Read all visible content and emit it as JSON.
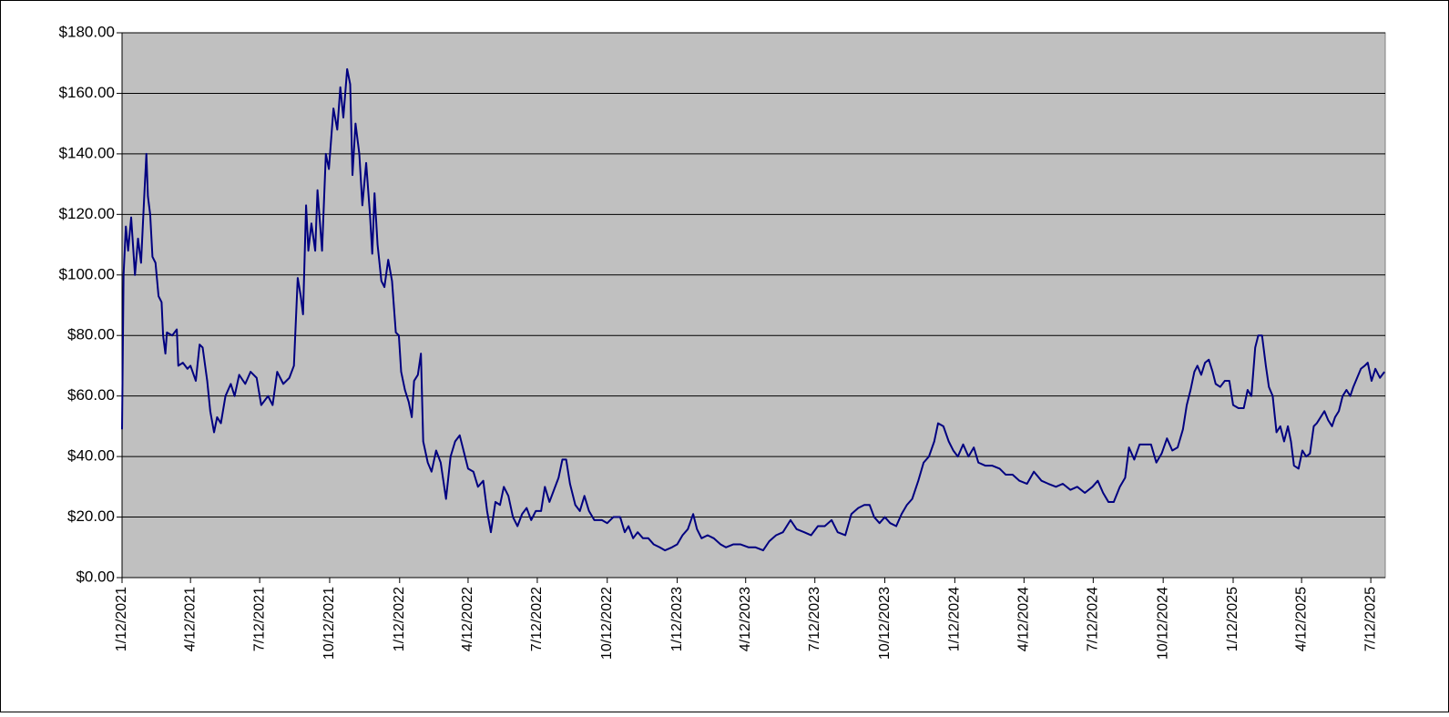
{
  "chart_data": {
    "type": "line",
    "color": "#000080",
    "grid": true,
    "xlim": [
      "1/12/2021",
      "7/31/2025"
    ],
    "xticks": [
      "1/12/2021",
      "4/12/2021",
      "7/12/2021",
      "10/12/2021",
      "1/12/2022",
      "4/12/2022",
      "7/12/2022",
      "10/12/2022",
      "1/12/2023",
      "4/12/2023",
      "7/12/2023",
      "10/12/2023",
      "1/12/2024",
      "4/12/2024",
      "7/12/2024",
      "10/12/2024",
      "1/12/2025",
      "4/12/2025",
      "7/12/2025"
    ],
    "ylim": [
      0,
      180
    ],
    "yticks": [
      {
        "value": 0,
        "label": "$0.00"
      },
      {
        "value": 20,
        "label": "$20.00"
      },
      {
        "value": 40,
        "label": "$40.00"
      },
      {
        "value": 60,
        "label": "$60.00"
      },
      {
        "value": 80,
        "label": "$80.00"
      },
      {
        "value": 100,
        "label": "$100.00"
      },
      {
        "value": 120,
        "label": "$120.00"
      },
      {
        "value": 140,
        "label": "$140.00"
      },
      {
        "value": 160,
        "label": "$160.00"
      },
      {
        "value": 180,
        "label": "$180.00"
      }
    ],
    "x": [
      "1/12/2021",
      "1/14/2021",
      "1/17/2021",
      "1/20/2021",
      "1/24/2021",
      "1/29/2021",
      "2/2/2021",
      "2/6/2021",
      "2/10/2021",
      "2/13/2021",
      "2/15/2021",
      "2/18/2021",
      "2/21/2021",
      "2/25/2021",
      "3/1/2021",
      "3/5/2021",
      "3/7/2021",
      "3/10/2021",
      "3/12/2021",
      "3/19/2021",
      "3/25/2021",
      "3/27/2021",
      "4/2/2021",
      "4/8/2021",
      "4/12/2021",
      "4/19/2021",
      "4/24/2021",
      "4/28/2021",
      "5/4/2021",
      "5/8/2021",
      "5/13/2021",
      "5/17/2021",
      "5/22/2021",
      "5/28/2021",
      "6/4/2021",
      "6/9/2021",
      "6/15/2021",
      "6/23/2021",
      "6/30/2021",
      "7/8/2021",
      "7/14/2021",
      "7/23/2021",
      "7/29/2021",
      "8/4/2021",
      "8/12/2021",
      "8/20/2021",
      "8/26/2021",
      "8/31/2021",
      "9/4/2021",
      "9/7/2021",
      "9/11/2021",
      "9/14/2021",
      "9/18/2021",
      "9/23/2021",
      "9/26/2021",
      "10/2/2021",
      "10/7/2021",
      "10/11/2021",
      "10/17/2021",
      "10/22/2021",
      "10/26/2021",
      "10/30/2021",
      "11/4/2021",
      "11/8/2021",
      "11/11/2021",
      "11/15/2021",
      "11/20/2021",
      "11/24/2021",
      "11/29/2021",
      "12/4/2021",
      "12/7/2021",
      "12/10/2021",
      "12/14/2021",
      "12/19/2021",
      "12/23/2021",
      "12/28/2021",
      "1/2/2022",
      "1/7/2022",
      "1/11/2022",
      "1/14/2022",
      "1/19/2022",
      "1/24/2022",
      "1/28/2022",
      "1/31/2022",
      "2/5/2022",
      "2/9/2022",
      "2/12/2022",
      "2/18/2022",
      "2/23/2022",
      "3/1/2022",
      "3/7/2022",
      "3/14/2022",
      "3/20/2022",
      "3/26/2022",
      "4/1/2022",
      "4/7/2022",
      "4/12/2022",
      "4/19/2022",
      "4/25/2022",
      "5/2/2022",
      "5/7/2022",
      "5/12/2022",
      "5/18/2022",
      "5/24/2022",
      "5/29/2022",
      "6/4/2022",
      "6/10/2022",
      "6/16/2022",
      "6/22/2022",
      "6/28/2022",
      "7/4/2022",
      "7/10/2022",
      "7/17/2022",
      "7/22/2022",
      "7/28/2022",
      "8/3/2022",
      "8/9/2022",
      "8/14/2022",
      "8/19/2022",
      "8/24/2022",
      "8/31/2022",
      "9/6/2022",
      "9/12/2022",
      "9/18/2022",
      "9/25/2022",
      "10/5/2022",
      "10/12/2022",
      "10/20/2022",
      "10/29/2022",
      "11/4/2022",
      "11/9/2022",
      "11/15/2022",
      "11/21/2022",
      "11/28/2022",
      "12/5/2022",
      "12/12/2022",
      "12/20/2022",
      "12/27/2022",
      "1/5/2023",
      "1/12/2023",
      "1/19/2023",
      "1/26/2023",
      "2/2/2023",
      "2/7/2023",
      "2/13/2023",
      "2/21/2023",
      "3/1/2023",
      "3/10/2023",
      "3/17/2023",
      "3/27/2023",
      "4/5/2023",
      "4/16/2023",
      "4/25/2023",
      "5/5/2023",
      "5/13/2023",
      "5/22/2023",
      "5/31/2023",
      "6/10/2023",
      "6/18/2023",
      "6/28/2023",
      "7/7/2023",
      "7/16/2023",
      "7/25/2023",
      "8/3/2023",
      "8/11/2023",
      "8/21/2023",
      "8/29/2023",
      "9/7/2023",
      "9/15/2023",
      "9/22/2023",
      "9/28/2023",
      "10/5/2023",
      "10/12/2023",
      "10/19/2023",
      "10/27/2023",
      "11/3/2023",
      "11/10/2023",
      "11/17/2023",
      "11/25/2023",
      "12/2/2023",
      "12/9/2023",
      "12/16/2023",
      "12/21/2023",
      "12/28/2023",
      "1/4/2024",
      "1/10/2024",
      "1/16/2024",
      "1/23/2024",
      "1/30/2024",
      "2/6/2024",
      "2/12/2024",
      "2/21/2024",
      "3/1/2024",
      "3/11/2024",
      "3/19/2024",
      "3/28/2024",
      "4/6/2024",
      "4/16/2024",
      "4/25/2024",
      "5/5/2024",
      "5/14/2024",
      "5/24/2024",
      "6/2/2024",
      "6/12/2024",
      "6/21/2024",
      "7/1/2024",
      "7/11/2024",
      "7/18/2024",
      "7/25/2024",
      "8/1/2024",
      "8/8/2024",
      "8/16/2024",
      "8/23/2024",
      "8/28/2024",
      "9/4/2024",
      "9/11/2024",
      "9/19/2024",
      "9/26/2024",
      "10/3/2024",
      "10/10/2024",
      "10/17/2024",
      "10/24/2024",
      "10/31/2024",
      "11/7/2024",
      "11/12/2024",
      "11/17/2024",
      "11/22/2024",
      "11/26/2024",
      "12/1/2024",
      "12/6/2024",
      "12/11/2024",
      "12/16/2024",
      "12/20/2024",
      "12/26/2024",
      "1/1/2025",
      "1/7/2025",
      "1/12/2025",
      "1/19/2025",
      "1/26/2025",
      "1/31/2025",
      "2/5/2025",
      "2/10/2025",
      "2/14/2025",
      "2/19/2025",
      "2/24/2025",
      "2/28/2025",
      "3/5/2025",
      "3/10/2025",
      "3/15/2025",
      "3/20/2025",
      "3/25/2025",
      "3/29/2025",
      "4/2/2025",
      "4/8/2025",
      "4/13/2025",
      "4/18/2025",
      "4/23/2025",
      "4/28/2025",
      "5/2/2025",
      "5/7/2025",
      "5/12/2025",
      "5/17/2025",
      "5/22/2025",
      "5/26/2025",
      "5/31/2025",
      "6/5/2025",
      "6/10/2025",
      "6/15/2025",
      "6/19/2025",
      "6/24/2025",
      "6/29/2025",
      "7/4/2025",
      "7/8/2025",
      "7/13/2025",
      "7/18/2025",
      "7/24/2025",
      "7/30/2025"
    ],
    "values": [
      49,
      100,
      116,
      108,
      119,
      100,
      112,
      104,
      125,
      140,
      126,
      120,
      106,
      104,
      93,
      91,
      80,
      74,
      81,
      80,
      82,
      70,
      71,
      69,
      70,
      65,
      77,
      76,
      65,
      55,
      48,
      53,
      51,
      60,
      64,
      60,
      67,
      64,
      68,
      66,
      57,
      60,
      57,
      68,
      64,
      66,
      70,
      99,
      93,
      87,
      123,
      108,
      117,
      108,
      128,
      108,
      140,
      135,
      155,
      148,
      162,
      152,
      168,
      163,
      133,
      150,
      140,
      123,
      137,
      120,
      107,
      127,
      110,
      98,
      96,
      105,
      98,
      81,
      80,
      68,
      62,
      58,
      53,
      65,
      67,
      74,
      45,
      38,
      35,
      42,
      38,
      26,
      40,
      45,
      47,
      41,
      36,
      35,
      30,
      32,
      22,
      15,
      25,
      24,
      30,
      27,
      20,
      17,
      21,
      23,
      19,
      22,
      22,
      30,
      25,
      29,
      33,
      39,
      39,
      31,
      24,
      22,
      27,
      22,
      19,
      19,
      18,
      20,
      20,
      15,
      17,
      13,
      15,
      13,
      13,
      11,
      10,
      9,
      10,
      11,
      14,
      16,
      21,
      16,
      13,
      14,
      13,
      11,
      10,
      11,
      11,
      10,
      10,
      9,
      12,
      14,
      15,
      19,
      16,
      15,
      14,
      17,
      17,
      19,
      15,
      14,
      21,
      23,
      24,
      24,
      20,
      18,
      20,
      18,
      17,
      21,
      24,
      26,
      32,
      38,
      40,
      45,
      51,
      50,
      45,
      42,
      40,
      44,
      40,
      43,
      38,
      37,
      37,
      36,
      34,
      34,
      32,
      31,
      35,
      32,
      31,
      30,
      31,
      29,
      30,
      28,
      30,
      32,
      28,
      25,
      25,
      30,
      33,
      43,
      39,
      44,
      44,
      44,
      38,
      41,
      46,
      42,
      43,
      49,
      57,
      62,
      68,
      70,
      67,
      71,
      72,
      68,
      64,
      63,
      65,
      65,
      57,
      56,
      56,
      62,
      60,
      76,
      80,
      80,
      70,
      63,
      60,
      48,
      50,
      45,
      50,
      45,
      37,
      36,
      42,
      40,
      41,
      50,
      51,
      53,
      55,
      52,
      50,
      53,
      55,
      60,
      62,
      60,
      63,
      66,
      69,
      70,
      71,
      65,
      69,
      66,
      68
    ]
  }
}
